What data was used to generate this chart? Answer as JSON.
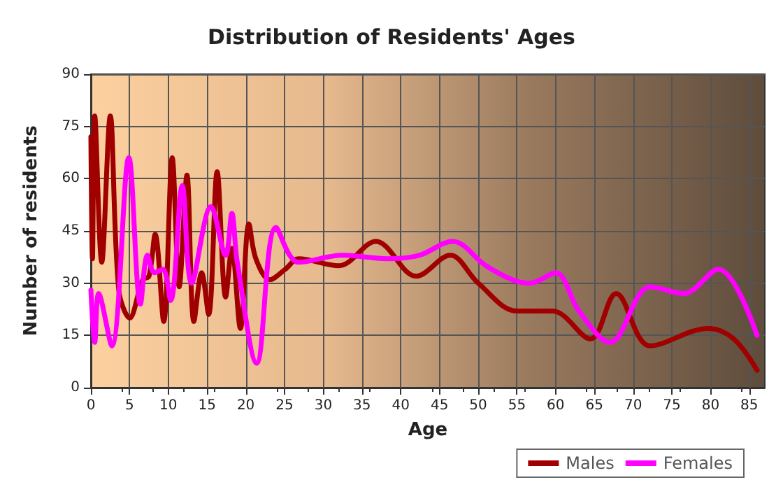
{
  "chart_data": {
    "type": "line",
    "title": "Distribution of Residents' Ages",
    "xlabel": "Age",
    "ylabel": "Number of residents",
    "xlim": [
      0,
      87
    ],
    "xticks": [
      0,
      5,
      10,
      15,
      20,
      25,
      30,
      35,
      40,
      45,
      50,
      55,
      60,
      65,
      70,
      75,
      80,
      85
    ],
    "ylim": [
      0,
      90
    ],
    "yticks": [
      0,
      15,
      30,
      45,
      60,
      75,
      90
    ],
    "grid": true,
    "legend": "bottom right",
    "marker": "none",
    "line_style": "solid",
    "series": [
      {
        "name": "Males",
        "color": "#a00000",
        "x": [
          0,
          0.2,
          0.5,
          1.4,
          2.5,
          3.6,
          5,
          6.7,
          7.5,
          8.3,
          9.4,
          10.5,
          11.4,
          12.4,
          13.3,
          14.3,
          15.2,
          16.3,
          17.4,
          18.2,
          19.3,
          20.4,
          21.3,
          23.1,
          25.1,
          26.8,
          32,
          36.8,
          42,
          46.4,
          50,
          55,
          59.6,
          64.5,
          67.8,
          72.2,
          79.7,
          83,
          86
        ],
        "values": [
          72,
          37,
          78,
          36,
          78,
          28,
          20,
          31,
          32,
          44,
          19,
          66,
          29,
          61,
          19,
          33,
          21,
          62,
          26,
          40,
          17,
          47,
          37,
          31,
          34,
          37,
          35,
          42,
          32,
          38,
          30,
          22,
          22,
          14,
          27,
          12,
          17,
          14,
          5
        ]
      },
      {
        "name": "Females",
        "color": "#ff00ff",
        "x": [
          0,
          0.5,
          1,
          2.7,
          4.9,
          6.4,
          7.3,
          8.2,
          9.3,
          10.3,
          11.8,
          13,
          15.5,
          17.4,
          18.2,
          18.9,
          21.4,
          23.9,
          26.8,
          32.5,
          38.3,
          42.4,
          46.7,
          51,
          54.4,
          56.7,
          60,
          63,
          67,
          72.2,
          76.5,
          81,
          86
        ],
        "values": [
          28,
          13,
          27,
          12,
          66,
          24,
          38,
          33,
          34,
          25,
          58,
          30,
          52,
          38,
          50,
          36,
          7,
          46,
          36,
          38,
          37,
          38,
          42,
          35,
          31,
          30,
          33,
          22,
          13,
          29,
          27,
          34,
          15
        ]
      }
    ]
  }
}
